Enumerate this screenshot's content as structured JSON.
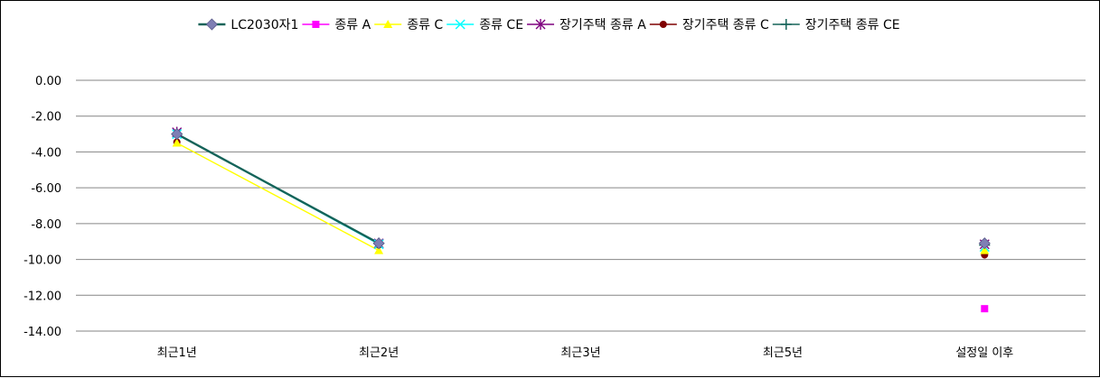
{
  "chart_data": {
    "type": "line",
    "categories": [
      "최근1년",
      "최근2년",
      "최근3년",
      "최근5년",
      "설정일 이후"
    ],
    "ylim": [
      -14,
      0
    ],
    "yticks": [
      "0.00",
      "-2.00",
      "-4.00",
      "-6.00",
      "-8.00",
      "-10.00",
      "-12.00",
      "-14.00"
    ],
    "grid": true,
    "legend_position": "top",
    "series": [
      {
        "name": "LC2030자1",
        "color": "#156359",
        "marker": "diamond",
        "marker_color": "#7f7fb4",
        "line": true,
        "values": [
          -3.0,
          -9.1,
          null,
          null,
          -9.1
        ]
      },
      {
        "name": "종류 A",
        "color": "#ff00ff",
        "marker": "square",
        "line": false,
        "values": [
          null,
          null,
          null,
          null,
          -12.75
        ]
      },
      {
        "name": "종류 C",
        "color": "#ffff00",
        "marker": "triangle",
        "line": true,
        "values": [
          -3.5,
          -9.5,
          null,
          null,
          -9.5
        ]
      },
      {
        "name": "종류 CE",
        "color": "#00ffff",
        "marker": "x",
        "line": true,
        "values": [
          -3.0,
          -9.15,
          null,
          null,
          -9.3
        ]
      },
      {
        "name": "장기주택 종류 A",
        "color": "#7f007f",
        "marker": "star",
        "line": false,
        "values": [
          -2.9,
          -9.1,
          null,
          null,
          -9.15
        ]
      },
      {
        "name": "장기주택 종류 C",
        "color": "#7f0000",
        "marker": "circle",
        "line": false,
        "values": [
          -3.45,
          -9.2,
          null,
          null,
          -9.75
        ]
      },
      {
        "name": "장기주택 종류 CE",
        "color": "#156359",
        "marker": "plus",
        "line": false,
        "values": [
          -3.0,
          -9.1,
          null,
          null,
          -9.2
        ]
      }
    ]
  }
}
